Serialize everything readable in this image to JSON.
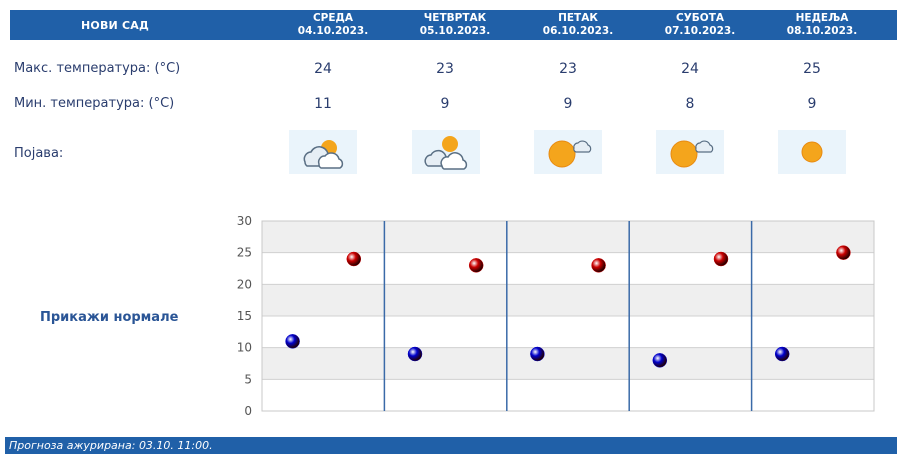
{
  "header": {
    "city": "НОВИ САД",
    "days": [
      {
        "name": "СРЕДА",
        "date": "04.10.2023."
      },
      {
        "name": "ЧЕТВРТАК",
        "date": "05.10.2023."
      },
      {
        "name": "ПЕТАК",
        "date": "06.10.2023."
      },
      {
        "name": "СУБОТА",
        "date": "07.10.2023."
      },
      {
        "name": "НЕДЕЉА",
        "date": "08.10.2023."
      }
    ]
  },
  "rows": {
    "max_label": "Макс. температура: (°C)",
    "min_label": "Мин. температура: (°C)",
    "phenomenon_label": "Појава:",
    "max_values": [
      "24",
      "23",
      "23",
      "24",
      "25"
    ],
    "min_values": [
      "11",
      "9",
      "9",
      "8",
      "9"
    ],
    "icons": [
      "cloudy-sun-icon",
      "partly-cloudy-icon",
      "sun-cloud-icon",
      "sun-cloud-icon",
      "sun-icon"
    ]
  },
  "norm_link": "Прикажи нормале",
  "footer": {
    "label": "Прогноза ажурирана:",
    "updated": "03.10. 11:00."
  },
  "colors": {
    "header_bg": "#2060a8",
    "max_marker": "#cc0000",
    "min_marker": "#0000cc",
    "text": "#2a3d6e"
  },
  "chart_data": {
    "type": "scatter",
    "categories": [
      "04.10.2023.",
      "05.10.2023.",
      "06.10.2023.",
      "07.10.2023.",
      "08.10.2023."
    ],
    "series": [
      {
        "values": [
          24,
          23,
          23,
          24,
          25
        ],
        "color": "#cc0000"
      },
      {
        "values": [
          11,
          9,
          9,
          8,
          9
        ],
        "color": "#0000cc"
      }
    ],
    "ylim": [
      0,
      30
    ],
    "yticks": [
      0,
      5,
      10,
      15,
      20,
      25,
      30
    ],
    "grid": true
  }
}
